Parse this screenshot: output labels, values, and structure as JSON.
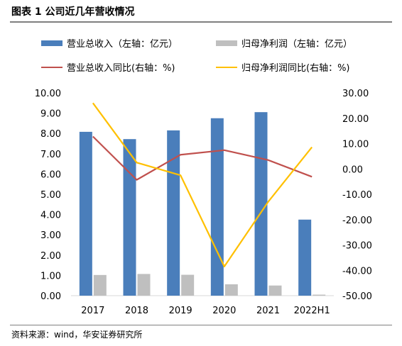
{
  "header": {
    "title": "图表 1 公司近几年营收情况"
  },
  "footer": {
    "source": "资料来源：wind，华安证券研究所"
  },
  "colors": {
    "revenue": "#4a7ebb",
    "net_profit": "#bfbfbf",
    "revenue_yoy": "#c0504d",
    "net_profit_yoy": "#ffc000",
    "rule": "#7f7f7f"
  },
  "chart_data": {
    "type": "bar",
    "categories": [
      "2017",
      "2018",
      "2019",
      "2020",
      "2021",
      "2022H1"
    ],
    "left_axis": {
      "min": 0,
      "max": 10,
      "step": 1,
      "tick_labels": [
        "0.00",
        "1.00",
        "2.00",
        "3.00",
        "4.00",
        "5.00",
        "6.00",
        "7.00",
        "8.00",
        "9.00",
        "10.00"
      ]
    },
    "right_axis": {
      "min": -50,
      "max": 30,
      "step": 10,
      "tick_labels": [
        "-50.00",
        "-40.00",
        "-30.00",
        "-20.00",
        "-10.00",
        "0.00",
        "10.00",
        "20.00",
        "30.00"
      ]
    },
    "series": [
      {
        "name": "营业总收入（左轴：亿元）",
        "type": "bar",
        "axis": "left",
        "values": [
          8.08,
          7.72,
          8.15,
          8.75,
          9.05,
          3.75
        ]
      },
      {
        "name": "归母净利润（左轴：亿元）",
        "type": "bar",
        "axis": "left",
        "values": [
          1.02,
          1.07,
          1.03,
          0.56,
          0.5,
          0.05
        ]
      },
      {
        "name": "营业总收入同比(右轴：%)",
        "type": "line",
        "axis": "right",
        "values": [
          12.8,
          -4.3,
          5.6,
          7.4,
          3.5,
          -3.1
        ]
      },
      {
        "name": "归母净利润同比(右轴：%)",
        "type": "line",
        "axis": "right",
        "values": [
          26.0,
          2.5,
          -2.5,
          -38.5,
          -13.0,
          8.6
        ]
      }
    ],
    "grid": false,
    "legend": "top"
  }
}
